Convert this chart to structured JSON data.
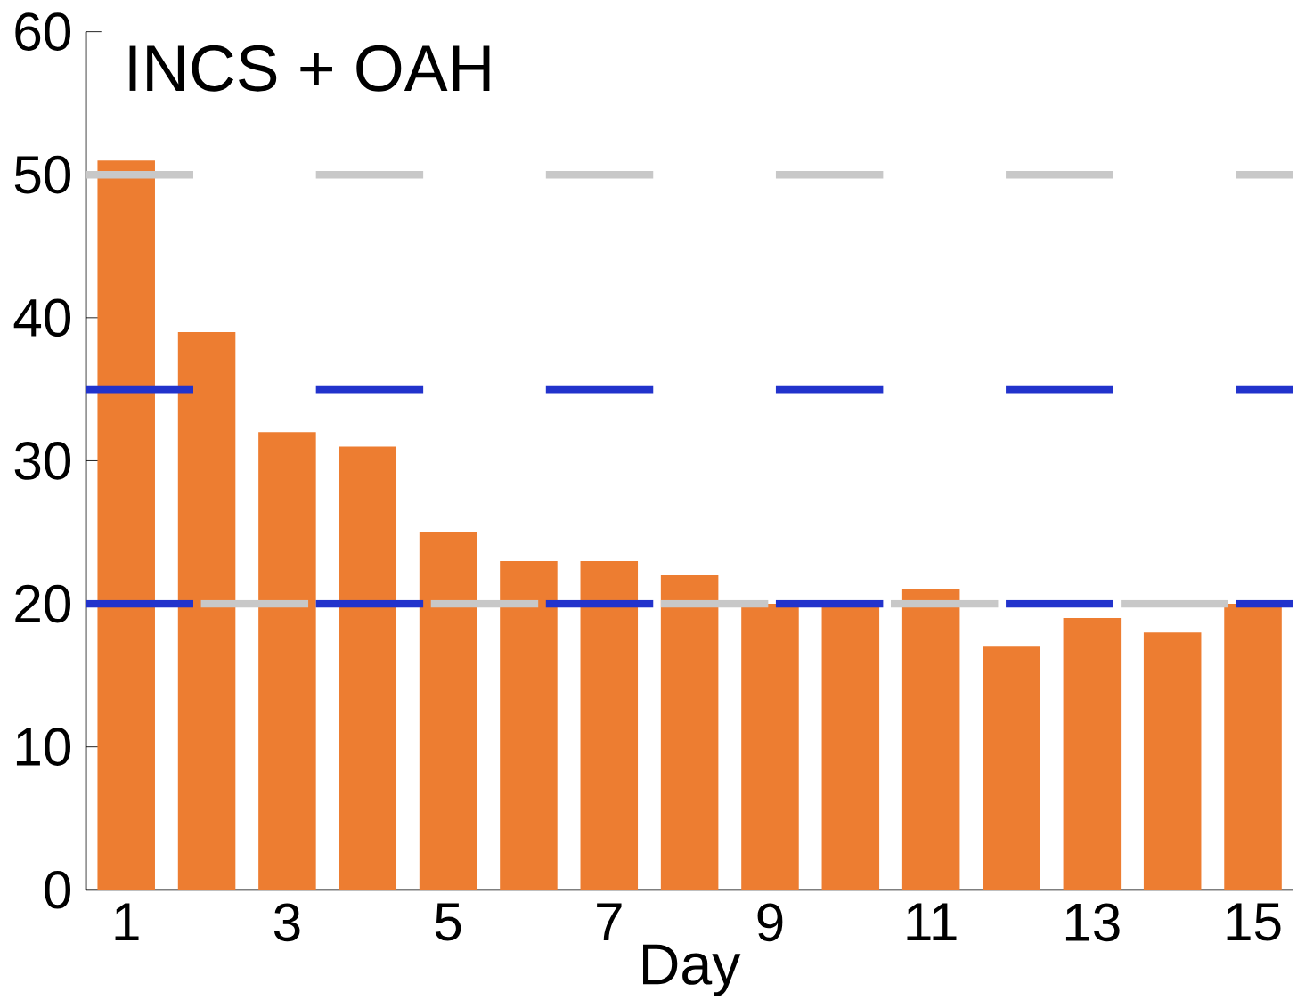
{
  "chart_data": {
    "type": "bar",
    "title": "INCS + OAH",
    "xlabel": "Day",
    "categories": [
      "1",
      null,
      "3",
      null,
      "5",
      null,
      "7",
      null,
      "9",
      null,
      "11",
      null,
      "13",
      null,
      "15"
    ],
    "values": [
      51,
      39,
      32,
      31,
      25,
      23,
      23,
      22,
      20,
      20,
      21,
      17,
      19,
      18,
      20
    ],
    "color": "#ed7d31",
    "ylim": [
      0,
      60
    ],
    "yticks": [
      0,
      10,
      20,
      30,
      40,
      50,
      60
    ],
    "grid": false,
    "ref_lines": [
      {
        "axis": "y",
        "value": 50,
        "color": "#c8c8c8",
        "line_style": "dashed"
      },
      {
        "axis": "y",
        "value": 35,
        "color": "#2233cc",
        "line_style": "dashed"
      },
      {
        "axis": "y",
        "value": 20,
        "color": "#2233cc",
        "line_style": "dashed"
      },
      {
        "axis": "y",
        "value": 20,
        "color": "#c8c8c8",
        "line_style": "dashed"
      }
    ]
  }
}
